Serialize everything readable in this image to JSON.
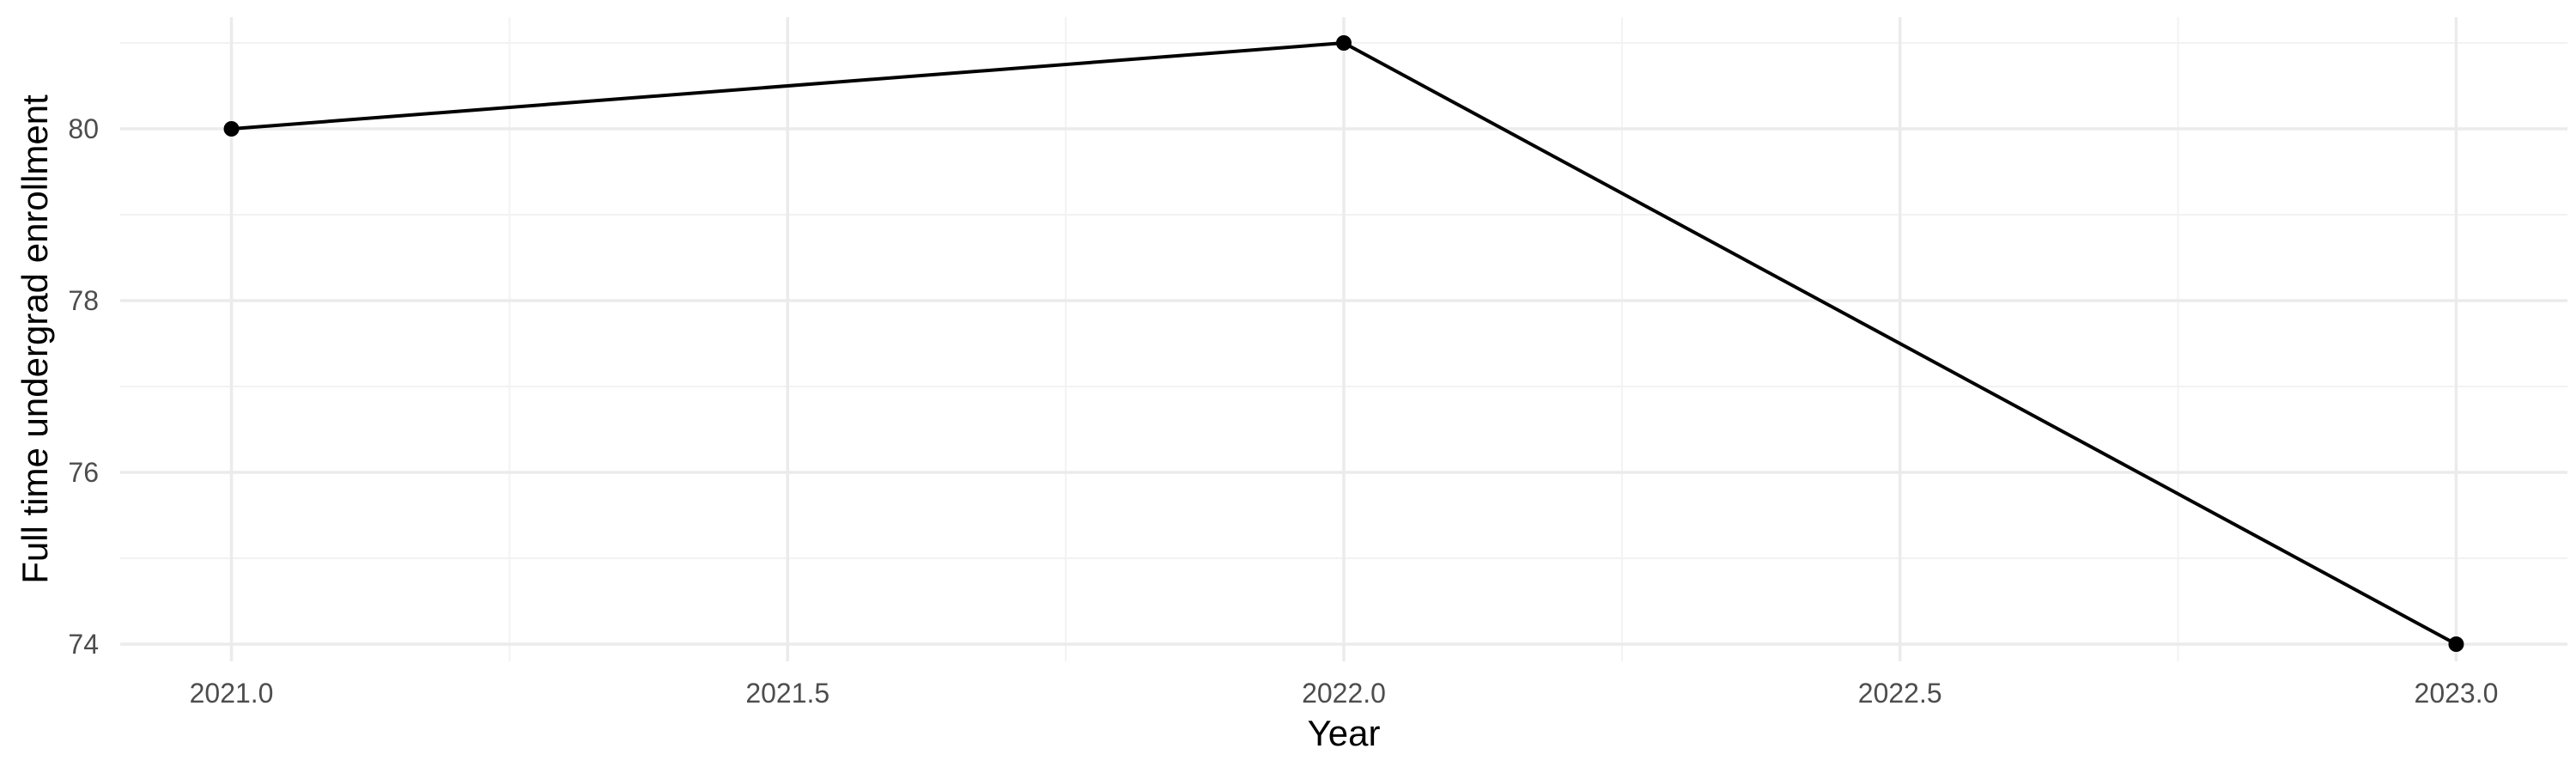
{
  "chart_data": {
    "type": "line",
    "title": "",
    "xlabel": "Year",
    "ylabel": "Full time undergrad enrollment",
    "x": [
      2021.0,
      2022.0,
      2023.0
    ],
    "series": [
      {
        "values": [
          80,
          81,
          74
        ]
      }
    ],
    "xlim": [
      2020.9,
      2023.1
    ],
    "ylim": [
      73.8,
      81.3
    ],
    "x_ticks": [
      2021.0,
      2021.5,
      2022.0,
      2022.5,
      2023.0
    ],
    "x_tick_labels": [
      "2021.0",
      "2021.5",
      "2022.0",
      "2022.5",
      "2023.0"
    ],
    "y_ticks": [
      74,
      76,
      78,
      80
    ],
    "y_tick_labels": [
      "74",
      "76",
      "78",
      "80"
    ],
    "grid": true,
    "legend": "none",
    "line_color": "#000000",
    "grid_color": "#ebebeb"
  }
}
